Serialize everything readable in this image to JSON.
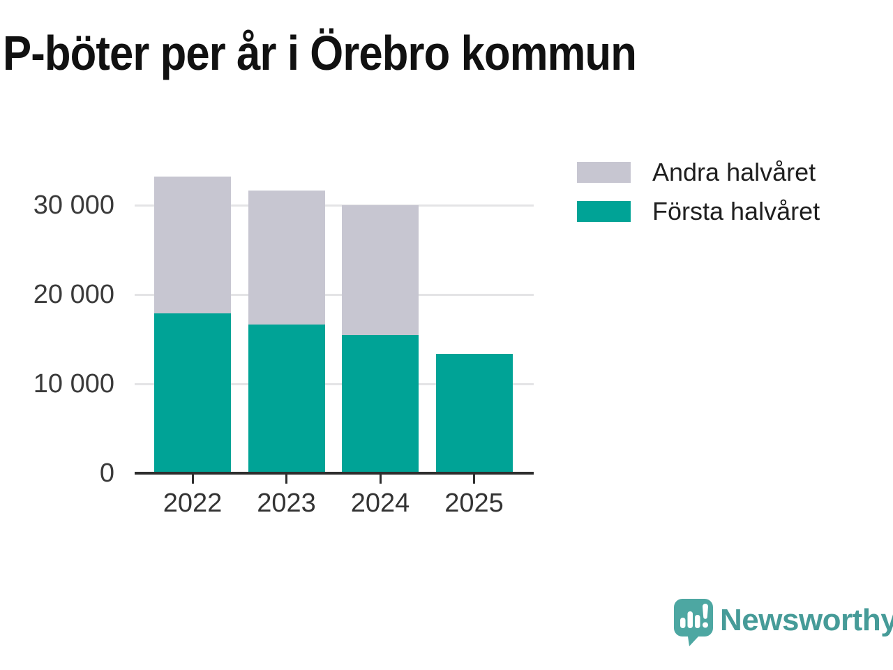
{
  "title": "P-böter per år i Örebro kommun",
  "legend": [
    {
      "label": "Andra halvåret",
      "color": "#c7c6d1"
    },
    {
      "label": "Första halvåret",
      "color": "#00a396"
    }
  ],
  "chart_data": {
    "type": "bar",
    "stacked": true,
    "title": "P-böter per år i Örebro kommun",
    "categories": [
      "2022",
      "2023",
      "2024",
      "2025"
    ],
    "series": [
      {
        "name": "Första halvåret",
        "color": "#00a396",
        "values": [
          17900,
          16700,
          15500,
          13400
        ]
      },
      {
        "name": "Andra halvåret",
        "color": "#c7c6d1",
        "values": [
          15400,
          15000,
          14600,
          0
        ]
      }
    ],
    "totals": [
      33300,
      31700,
      30100,
      13400
    ],
    "xlabel": "",
    "ylabel": "",
    "y_ticks": [
      0,
      10000,
      20000,
      30000
    ],
    "y_tick_labels": [
      "0",
      "10 000",
      "20 000",
      "30 000"
    ],
    "ylim": [
      0,
      35000
    ],
    "grid": "horizontal",
    "legend_position": "top-right",
    "axis_color": "#2e2e2e",
    "gridline_color": "#e4e4e6"
  },
  "branding": {
    "logo_text": "Newsworthy",
    "logo_icon": "newsworthy-speech-bubble-barchart-icon",
    "logo_color": "#469b98",
    "logo_icon_color": "#4da7a2"
  }
}
